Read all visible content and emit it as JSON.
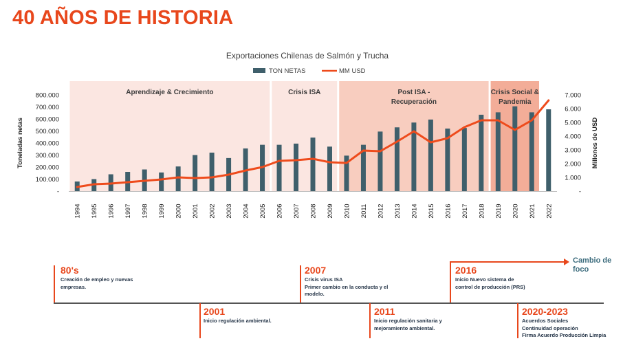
{
  "page_title": "40 AÑOS DE HISTORIA",
  "colors": {
    "accent": "#e8471c",
    "bar": "#3f5f6b",
    "line": "#ee4b1c",
    "band_light": "#fbe6e1",
    "band_mid": "#f8cdbf",
    "band_dark": "#f3ad98"
  },
  "chart_data": {
    "type": "bar",
    "title": "Exportaciones Chilenas de Salmón y Trucha",
    "legend": [
      "TON NETAS",
      "MM USD"
    ],
    "legend_position": "top",
    "ylabel": "Toneladas netas",
    "y2label": "Millones de USD",
    "ylim": [
      0,
      800000
    ],
    "y2lim": [
      0,
      7000
    ],
    "yticks": [
      "-",
      "100.000",
      "200.000",
      "300.000",
      "400.000",
      "500.000",
      "600.000",
      "700.000",
      "800.000"
    ],
    "y2ticks": [
      "-",
      "1.000",
      "2.000",
      "3.000",
      "4.000",
      "5.000",
      "6.000",
      "7.000"
    ],
    "categories": [
      "1994",
      "1995",
      "1996",
      "1997",
      "1998",
      "1999",
      "2000",
      "2001",
      "2002",
      "2003",
      "2004",
      "2005",
      "2006",
      "2007",
      "2008",
      "2009",
      "2010",
      "2011",
      "2012",
      "2013",
      "2014",
      "2015",
      "2016",
      "2017",
      "2018",
      "2019",
      "2020",
      "2021",
      "2022"
    ],
    "series": [
      {
        "name": "TON NETAS",
        "type": "bar",
        "axis": "left",
        "values": [
          80000,
          100000,
          140000,
          160000,
          180000,
          155000,
          205000,
          300000,
          320000,
          275000,
          355000,
          385000,
          385000,
          395000,
          445000,
          370000,
          295000,
          385000,
          495000,
          530000,
          570000,
          595000,
          520000,
          525000,
          635000,
          655000,
          705000,
          655000,
          680000
        ]
      },
      {
        "name": "MM USD",
        "type": "line",
        "axis": "right",
        "values": [
          300,
          500,
          550,
          650,
          750,
          850,
          1000,
          950,
          1000,
          1200,
          1500,
          1750,
          2200,
          2250,
          2350,
          2100,
          2050,
          2950,
          2900,
          3600,
          4350,
          3550,
          3850,
          4650,
          5150,
          5150,
          4450,
          5150,
          6600
        ]
      }
    ],
    "periods": [
      {
        "label": [
          "Aprendizaje & Crecimiento"
        ],
        "from": "1994",
        "to": "2005",
        "shade": "light"
      },
      {
        "label": [
          "Crisis ISA"
        ],
        "from": "2006",
        "to": "2009",
        "shade": "light"
      },
      {
        "label": [
          "Post ISA  -",
          "Recuperación"
        ],
        "from": "2010",
        "to": "2018",
        "shade": "mid"
      },
      {
        "label": [
          "Crisis Social &",
          "Pandemia"
        ],
        "from": "2019",
        "to": "2021",
        "shade": "dark"
      }
    ]
  },
  "timeline": {
    "events": [
      {
        "year": "80's",
        "desc": [
          "Creación de empleo y nuevas",
          "empresas."
        ]
      },
      {
        "year": "2001",
        "desc": [
          "Inicio regulación ambiental."
        ]
      },
      {
        "year": "2007",
        "desc": [
          "Crisis virus ISA",
          "Primer cambio en la conducta y el",
          "modelo."
        ]
      },
      {
        "year": "2011",
        "desc": [
          "Inicio regulación sanitaria y",
          "mejoramiento ambiental."
        ]
      },
      {
        "year": "2016",
        "desc": [
          "Inicio Nuevo sistema de",
          "control de producción (PRS)"
        ]
      },
      {
        "year": "2020-2023",
        "desc": [
          "Acuerdos Sociales",
          "Continuidad operación",
          "Firma Acuerdo Producción Limpia"
        ]
      }
    ],
    "cambio_label": [
      "Cambio de",
      "foco"
    ]
  }
}
